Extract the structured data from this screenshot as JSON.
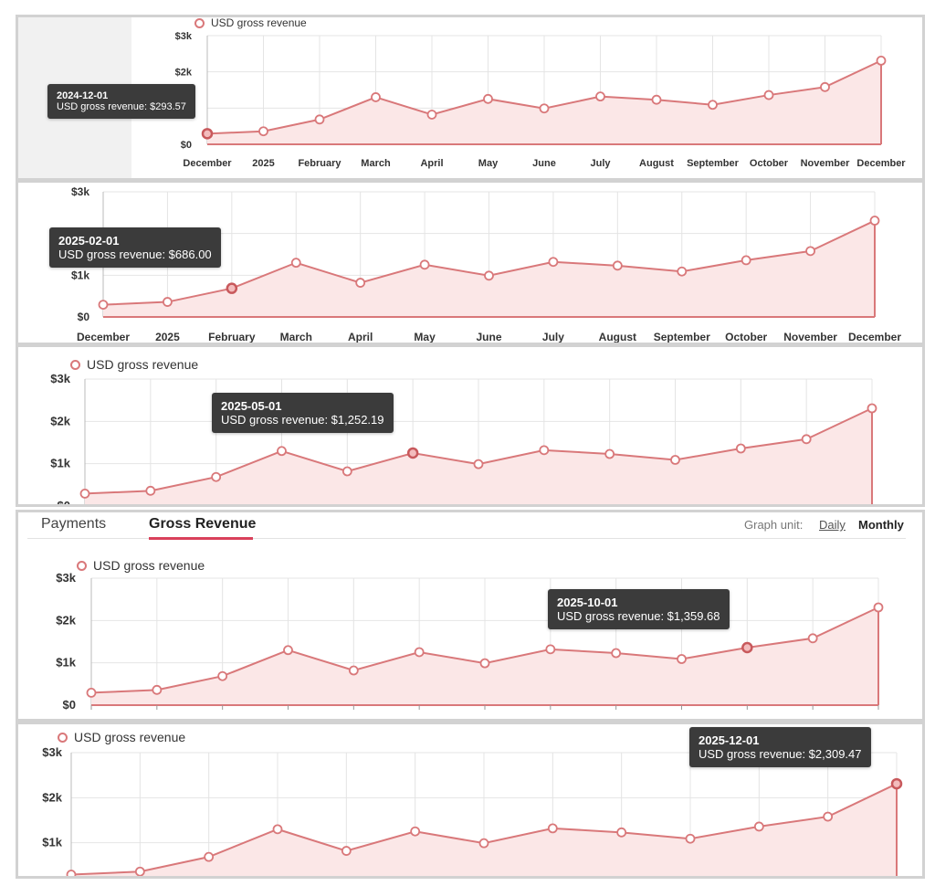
{
  "tabs": {
    "payments_label": "Payments",
    "gross_revenue_label": "Gross Revenue",
    "graph_unit_label": "Graph unit:",
    "daily_label": "Daily",
    "monthly_label": "Monthly"
  },
  "colors": {
    "line": "#d9787a",
    "area": "#fbe7e7",
    "grid": "#e4e4e4",
    "tooltip_bg": "#3b3b3b",
    "accent": "#d9415b"
  },
  "chart_data": {
    "type": "area",
    "legend": "USD gross revenue",
    "categories": [
      "December",
      "2025",
      "February",
      "March",
      "April",
      "May",
      "June",
      "July",
      "August",
      "September",
      "October",
      "November",
      "December"
    ],
    "dates": [
      "2024-12-01",
      "2025-01-01",
      "2025-02-01",
      "2025-03-01",
      "2025-04-01",
      "2025-05-01",
      "2025-06-01",
      "2025-07-01",
      "2025-08-01",
      "2025-09-01",
      "2025-10-01",
      "2025-11-01",
      "2025-12-01"
    ],
    "series": [
      {
        "name": "USD gross revenue",
        "values": [
          293.57,
          360,
          686.0,
          1300,
          820,
          1252.19,
          990,
          1320,
          1230,
          1090,
          1359.68,
          1580,
          2309.47
        ]
      }
    ],
    "yticks": [
      "$0",
      "$1k",
      "$2k",
      "$3k"
    ],
    "ylim": [
      0,
      3000
    ],
    "grid": true,
    "legend_position": "top-left"
  },
  "tooltips": [
    {
      "date": "2024-12-01",
      "text": "USD gross revenue: $293.57"
    },
    {
      "date": "2025-02-01",
      "text": "USD gross revenue: $686.00"
    },
    {
      "date": "2025-05-01",
      "text": "USD gross revenue: $1,252.19"
    },
    {
      "date": "2025-10-01",
      "text": "USD gross revenue: $1,359.68"
    },
    {
      "date": "2025-12-01",
      "text": "USD gross revenue: $2,309.47"
    }
  ]
}
